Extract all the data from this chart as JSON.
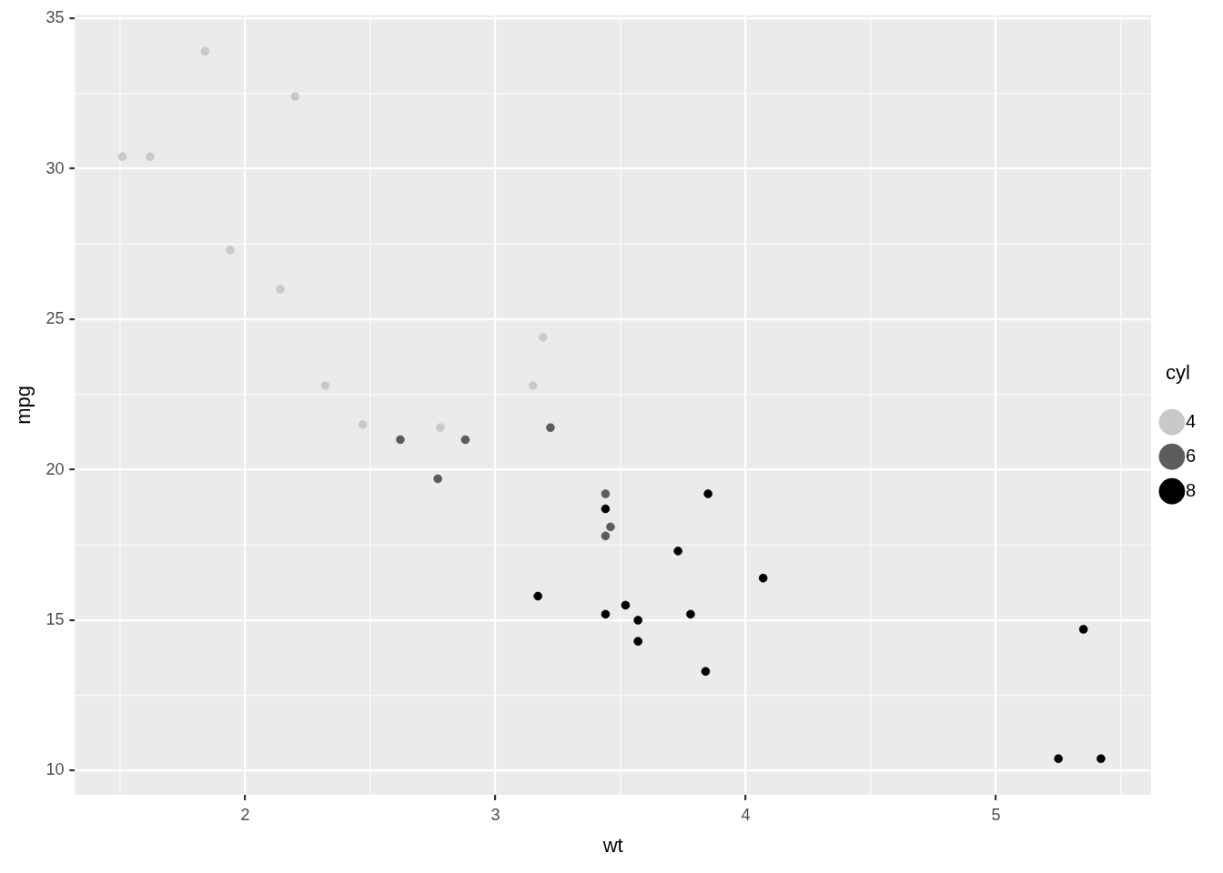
{
  "chart_data": {
    "type": "scatter",
    "xlabel": "wt",
    "ylabel": "mpg",
    "legend_title": "cyl",
    "legend": "right",
    "grid": true,
    "marker": "circle",
    "xlim": [
      1.32,
      5.62
    ],
    "xticks": [
      2,
      3,
      4,
      5
    ],
    "ylim": [
      9.2,
      35.1
    ],
    "yticks": [
      10,
      15,
      20,
      25,
      30,
      35
    ],
    "series": [
      {
        "name": "4",
        "color": "#c9c9c9",
        "x": [
          2.32,
          3.19,
          3.15,
          2.2,
          1.62,
          1.84,
          2.47,
          1.94,
          2.14,
          1.51,
          2.78
        ],
        "values": [
          22.8,
          24.4,
          22.8,
          32.4,
          30.4,
          33.9,
          21.5,
          27.3,
          26.0,
          30.4,
          21.4
        ]
      },
      {
        "name": "6",
        "color": "#5c5c5c",
        "x": [
          2.62,
          2.88,
          3.22,
          3.46,
          3.44,
          3.44,
          2.77
        ],
        "values": [
          21.0,
          21.0,
          21.4,
          18.1,
          19.2,
          17.8,
          19.7
        ]
      },
      {
        "name": "8",
        "color": "#000000",
        "x": [
          3.44,
          3.57,
          4.07,
          3.73,
          3.78,
          5.25,
          5.42,
          5.35,
          3.52,
          3.44,
          3.84,
          3.85,
          3.17,
          3.57
        ],
        "values": [
          18.7,
          14.3,
          16.4,
          17.3,
          15.2,
          10.4,
          10.4,
          14.7,
          15.5,
          15.2,
          13.3,
          19.2,
          15.8,
          15.0
        ]
      }
    ]
  }
}
